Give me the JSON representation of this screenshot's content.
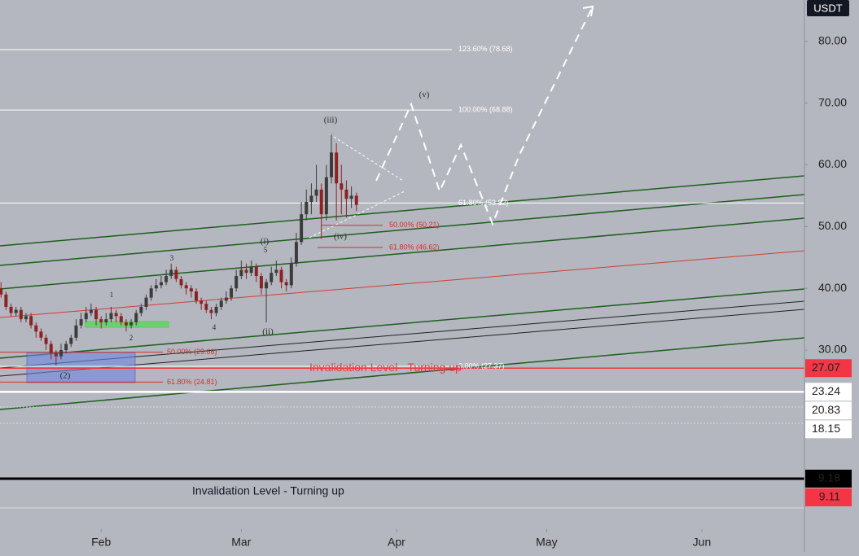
{
  "chart_data": {
    "type": "candlestick",
    "unit": "USDT",
    "x": [
      12,
      13,
      14,
      15,
      16,
      17,
      18,
      19,
      20,
      21,
      22,
      23,
      24,
      25,
      26,
      27,
      28,
      29,
      30,
      31,
      32,
      33,
      34,
      35,
      36,
      37,
      38,
      39,
      40,
      41,
      42,
      43,
      44,
      45,
      46,
      47,
      48,
      49,
      50,
      51,
      52,
      53,
      54,
      55,
      56,
      57,
      58,
      59,
      60,
      61,
      62,
      63,
      64,
      65,
      66,
      67,
      68,
      69,
      70,
      71,
      72,
      73,
      74,
      75,
      76,
      77,
      78,
      79,
      80,
      81,
      82,
      83
    ],
    "open": [
      40,
      39,
      37,
      36,
      36.5,
      35,
      35.5,
      34,
      33,
      32,
      31,
      29.5,
      29,
      30,
      31,
      32,
      34,
      35,
      36,
      36.5,
      35,
      34.5,
      35,
      36,
      35.5,
      34.5,
      34,
      34.5,
      36,
      37,
      38.5,
      40,
      40.5,
      41,
      42,
      43,
      41.5,
      40.5,
      40,
      39.5,
      38,
      37.5,
      36.5,
      36,
      37,
      38,
      38.5,
      40,
      42,
      43,
      42.5,
      43.5,
      42,
      40,
      41,
      42.5,
      43,
      41,
      40.5,
      44,
      47.5,
      52,
      54,
      55,
      56,
      52,
      58,
      62,
      57,
      56,
      54.5,
      55
    ],
    "high": [
      41,
      39.5,
      37.5,
      37,
      37,
      36,
      36,
      34.5,
      33.5,
      32.5,
      31.5,
      30,
      31,
      31.5,
      32.5,
      35,
      36,
      37,
      37.5,
      37,
      35.5,
      36,
      37,
      36.5,
      36,
      35,
      35,
      36.5,
      37.5,
      39,
      40.5,
      41.5,
      42,
      43,
      44,
      43.5,
      42,
      41,
      40.5,
      40,
      38.5,
      38,
      37,
      37.5,
      38.5,
      39.5,
      40.5,
      43,
      44.5,
      44,
      44.5,
      44,
      42.5,
      41.5,
      43.5,
      44.5,
      43.5,
      41.5,
      45,
      49,
      54,
      56,
      57,
      60,
      57,
      60,
      65,
      63.5,
      60,
      57.5,
      56.5,
      55.5
    ],
    "low": [
      38.5,
      36.5,
      35.5,
      35.5,
      34.5,
      34.5,
      33.5,
      32,
      31.5,
      30,
      28.5,
      27.5,
      28.5,
      29.5,
      30.5,
      31.5,
      33.5,
      34.5,
      35.5,
      34,
      33.5,
      34,
      34.5,
      34.5,
      34,
      33,
      33.5,
      34,
      35.5,
      36.5,
      38,
      39.5,
      40,
      40.5,
      41.5,
      41,
      40,
      39,
      38.5,
      37.5,
      36.5,
      36,
      35,
      35.5,
      36.5,
      37.5,
      38,
      39.5,
      41.5,
      41.5,
      42,
      41,
      39,
      34.5,
      40.5,
      42,
      40,
      39.5,
      40,
      43.5,
      47,
      51,
      52,
      54,
      48,
      51,
      57,
      51,
      52,
      51.5,
      53,
      52.5
    ],
    "close": [
      39,
      37,
      36,
      36.5,
      35,
      35.5,
      34,
      33,
      32,
      31,
      29.5,
      29,
      30,
      31,
      32,
      34,
      35,
      36,
      36.5,
      35,
      34.5,
      35,
      36,
      35.5,
      34.5,
      34,
      34.5,
      36,
      37,
      38.5,
      40,
      40.5,
      41,
      42,
      43,
      41.5,
      40.5,
      40,
      39.5,
      38,
      37.5,
      36.5,
      36,
      37,
      38,
      38.5,
      40,
      42,
      43,
      42.5,
      43.5,
      42,
      40,
      41,
      42.5,
      43,
      41,
      40.5,
      44,
      47.5,
      52,
      54,
      55,
      56,
      52,
      58,
      62,
      57,
      56,
      54.5,
      55,
      53.5
    ],
    "up_color": "#3c3c3c",
    "down_color": "#8c2323",
    "xlim": [
      11.8,
      172.5
    ],
    "xticks": [
      {
        "value": 32,
        "label": "Feb"
      },
      {
        "value": 60,
        "label": "Mar"
      },
      {
        "value": 91,
        "label": "Apr"
      },
      {
        "value": 121,
        "label": "May"
      },
      {
        "value": 152,
        "label": "Jun"
      }
    ],
    "ylim": [
      1.0,
      86.7
    ],
    "yticks": [
      {
        "value": 30,
        "label": "30.00"
      },
      {
        "value": 40,
        "label": "40.00"
      },
      {
        "value": 50,
        "label": "50.00"
      },
      {
        "value": 60,
        "label": "60.00"
      },
      {
        "value": 70,
        "label": "70.00"
      },
      {
        "value": 80,
        "label": "80.00"
      }
    ],
    "grid": false,
    "fib_levels": [
      {
        "label": "123.60% (78.68)",
        "value": 78.68,
        "color": "#ffffff"
      },
      {
        "label": "100.00% (68.88)",
        "value": 68.88,
        "color": "#ffffff"
      },
      {
        "label": "61.80% (53.82)",
        "value": 53.82,
        "color": "#ffffff"
      },
      {
        "label": "50.00% (50.21)",
        "value": 50.21,
        "color": "#d32f2f"
      },
      {
        "label": "61.80% (46.62)",
        "value": 46.62,
        "color": "#d32f2f"
      },
      {
        "label": "50.00% (29.66)",
        "value": 29.66,
        "color": "#d32f2f"
      },
      {
        "label": "61.80% (24.81)",
        "value": 24.81,
        "color": "#d32f2f"
      },
      {
        "label": "0.00% (27.37)",
        "value": 27.37,
        "color": "#ffffff"
      }
    ],
    "price_lines": [
      {
        "value": 27.07,
        "color": "#f23645"
      },
      {
        "value": 23.24,
        "color": "#ffffff"
      },
      {
        "value": 20.83,
        "color": "#ffffff"
      },
      {
        "value": 18.15,
        "color": "#ffffff"
      },
      {
        "value": 9.18,
        "color": "#000000"
      },
      {
        "value": 9.11,
        "color": "#f23645"
      }
    ],
    "wave_labels": [
      "(v)",
      "(iii)",
      "(iv)",
      "(i)",
      "5",
      "3",
      "1",
      "2",
      "4",
      "(ii)",
      "(2)"
    ],
    "annotations": [
      "Invalidation Level - Turning up",
      "Invalidation Level - Turning up"
    ]
  }
}
